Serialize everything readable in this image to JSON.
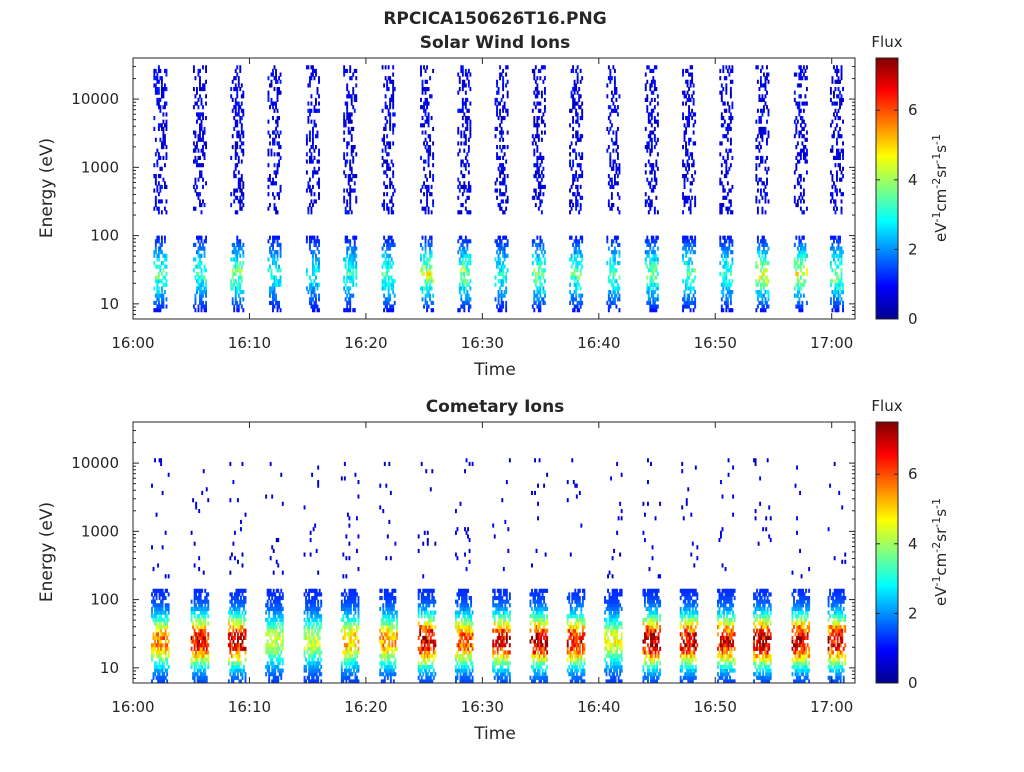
{
  "figure_title": "RPCICA150626T16.PNG",
  "colormap": "jet",
  "chart_data": [
    {
      "type": "heatmap",
      "title": "Solar Wind Ions",
      "xlabel": "Time",
      "ylabel": "Energy (eV)",
      "x_ticks": [
        "16:00",
        "16:10",
        "16:20",
        "16:30",
        "16:40",
        "16:50",
        "17:00"
      ],
      "x_range_minutes": [
        0,
        62
      ],
      "y_scale": "log",
      "y_ticks": [
        10,
        100,
        1000,
        10000
      ],
      "y_tick_labels": [
        "10",
        "100",
        "1000",
        "10000"
      ],
      "y_range": [
        6,
        40000
      ],
      "colorbar": {
        "label_top": "Flux",
        "label_side": "eV-1cm-2sr-1s-1",
        "range": [
          0,
          7.5
        ],
        "ticks": [
          0,
          2,
          4,
          6
        ]
      },
      "sweep_times_minutes": [
        2.3,
        5.7,
        8.9,
        12.1,
        15.4,
        18.6,
        21.9,
        25.2,
        28.4,
        31.6,
        34.8,
        38.0,
        41.2,
        44.5,
        47.7,
        50.9,
        54.0,
        57.3,
        60.4
      ],
      "sweep_peak_flux": [
        3.8,
        3.5,
        4.0,
        3.2,
        3.0,
        3.4,
        3.6,
        4.6,
        4.2,
        3.3,
        4.0,
        3.9,
        3.6,
        4.0,
        3.8,
        3.5,
        4.8,
        4.8,
        4.2
      ],
      "low_energy_peak_eV": 28,
      "high_energy_background_eV": [
        200,
        30000
      ]
    },
    {
      "type": "heatmap",
      "title": "Cometary Ions",
      "xlabel": "Time",
      "ylabel": "Energy (eV)",
      "x_ticks": [
        "16:00",
        "16:10",
        "16:20",
        "16:30",
        "16:40",
        "16:50",
        "17:00"
      ],
      "x_range_minutes": [
        0,
        62
      ],
      "y_scale": "log",
      "y_ticks": [
        10,
        100,
        1000,
        10000
      ],
      "y_tick_labels": [
        "10",
        "100",
        "1000",
        "10000"
      ],
      "y_range": [
        6,
        40000
      ],
      "colorbar": {
        "label_top": "Flux",
        "label_side": "eV-1cm-2sr-1s-1",
        "range": [
          0,
          7.5
        ],
        "ticks": [
          0,
          2,
          4,
          6
        ]
      },
      "sweep_times_minutes": [
        2.3,
        5.7,
        8.9,
        12.1,
        15.4,
        18.6,
        21.9,
        25.2,
        28.4,
        31.6,
        34.8,
        38.0,
        41.2,
        44.5,
        47.7,
        50.9,
        54.0,
        57.3,
        60.4
      ],
      "sweep_peak_flux": [
        5.0,
        6.2,
        6.5,
        3.6,
        3.5,
        4.5,
        4.8,
        6.8,
        5.5,
        6.5,
        6.8,
        6.2,
        3.8,
        7.0,
        6.5,
        6.2,
        6.8,
        6.8,
        6.5
      ],
      "low_energy_peak_eV": 25,
      "high_energy_background_eV": [
        200,
        12000
      ]
    }
  ]
}
